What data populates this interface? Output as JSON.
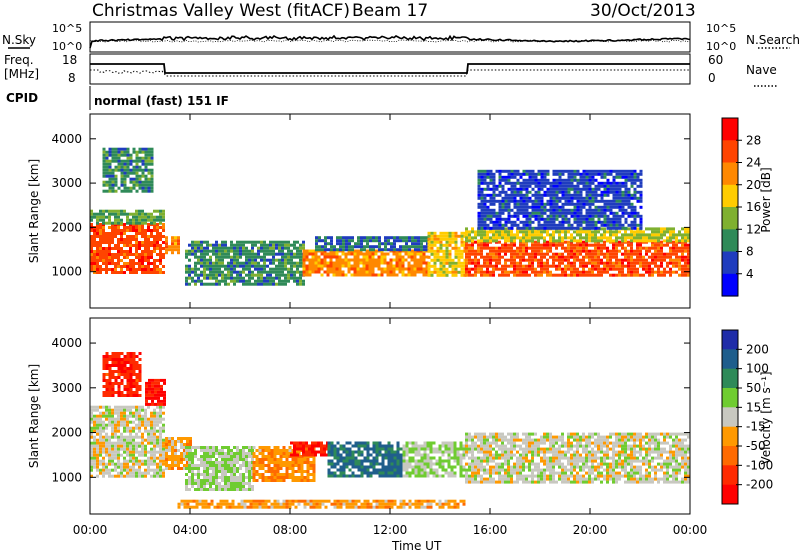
{
  "header": {
    "station": "Christmas Valley West (fitACF)",
    "beam": "Beam 17",
    "date": "30/Oct/2013"
  },
  "param_strip": {
    "nsky_label": "N.Sky",
    "nsky_ticks": [
      "10^5",
      "10^0"
    ],
    "nsearch_label": "N.Search",
    "nsearch_ticks": [
      "10^5",
      "10^0"
    ],
    "freq_label_1": "Freq.",
    "freq_label_2": "[MHz]",
    "freq_ticks": [
      "18",
      "8"
    ],
    "nave_label": "Nave",
    "nave_ticks": [
      "60",
      "0"
    ],
    "cpid_label": "CPID",
    "cpid_value": "normal (fast) 151 IF"
  },
  "power_panel": {
    "ylabel": "Slant Range [km]",
    "colorbar_label": "Power [dB]",
    "colorbar_ticks": [
      "28",
      "24",
      "20",
      "16",
      "12",
      "8",
      "4"
    ],
    "colorbar_colors": [
      "#ff0000",
      "#ff4400",
      "#ff8800",
      "#ffcc00",
      "#7fb030",
      "#2f8a58",
      "#1f3cbe",
      "#0000ff"
    ]
  },
  "velocity_panel": {
    "ylabel": "Slant Range [km]",
    "colorbar_label": "Velocity [m s⁻¹]",
    "colorbar_ticks": [
      "200",
      "100",
      "50",
      "15",
      "-15",
      "-50",
      "-100",
      "-200"
    ],
    "colorbar_colors": [
      "#1f2ca8",
      "#1f5e8c",
      "#2e8a58",
      "#6fcc30",
      "#c8c8c0",
      "#ff9900",
      "#ff6a00",
      "#ff2a00",
      "#ff0000"
    ]
  },
  "x_axis": {
    "label": "Time UT",
    "ticks": [
      "00:00",
      "04:00",
      "08:00",
      "12:00",
      "16:00",
      "20:00",
      "00:00"
    ]
  },
  "chart_data": [
    {
      "type": "heatmap",
      "title": "Christmas Valley West (fitACF) Beam 17 30/Oct/2013",
      "quantity": "Power",
      "xlabel": "Time UT",
      "ylabel": "Slant Range [km]",
      "colorbar_label": "Power [dB]",
      "xlim": [
        "00:00",
        "24:00"
      ],
      "ylim": [
        180,
        4560
      ],
      "y_ticks": [
        1000,
        2000,
        3000,
        4000
      ],
      "colorbar_range": [
        0,
        32
      ],
      "regions": [
        {
          "t_start": 0.0,
          "t_end": 3.0,
          "r_low": 1000,
          "r_high": 2100,
          "value": 26
        },
        {
          "t_start": 0.0,
          "t_end": 3.0,
          "r_low": 2100,
          "r_high": 2400,
          "value": 12
        },
        {
          "t_start": 0.5,
          "t_end": 2.5,
          "r_low": 2800,
          "r_high": 3800,
          "value": 10
        },
        {
          "t_start": 3.0,
          "t_end": 3.6,
          "r_low": 1400,
          "r_high": 1800,
          "value": 22
        },
        {
          "t_start": 3.8,
          "t_end": 8.5,
          "r_low": 750,
          "r_high": 1700,
          "value": 10
        },
        {
          "t_start": 8.5,
          "t_end": 13.5,
          "r_low": 900,
          "r_high": 1500,
          "value": 22
        },
        {
          "t_start": 9.0,
          "t_end": 13.5,
          "r_low": 1500,
          "r_high": 1800,
          "value": 8
        },
        {
          "t_start": 13.5,
          "t_end": 15.0,
          "r_low": 900,
          "r_high": 1900,
          "value": 18
        },
        {
          "t_start": 15.0,
          "t_end": 24.0,
          "r_low": 900,
          "r_high": 1700,
          "value": 26
        },
        {
          "t_start": 15.0,
          "t_end": 24.0,
          "r_low": 1700,
          "r_high": 2000,
          "value": 16
        },
        {
          "t_start": 15.5,
          "t_end": 22.0,
          "r_low": 2000,
          "r_high": 3300,
          "value": 6
        }
      ]
    },
    {
      "type": "heatmap",
      "title": "Christmas Valley West (fitACF) Beam 17 30/Oct/2013",
      "quantity": "Velocity",
      "xlabel": "Time UT",
      "ylabel": "Slant Range [km]",
      "colorbar_label": "Velocity [m s⁻¹]",
      "xlim": [
        "00:00",
        "24:00"
      ],
      "ylim": [
        180,
        4560
      ],
      "y_ticks": [
        1000,
        2000,
        3000,
        4000
      ],
      "colorbar_range": [
        -250,
        250
      ],
      "regions": [
        {
          "t_start": 0.0,
          "t_end": 3.0,
          "r_low": 1000,
          "r_high": 2600,
          "value": 0
        },
        {
          "t_start": 0.5,
          "t_end": 2.0,
          "r_low": 2800,
          "r_high": 3800,
          "value": -180
        },
        {
          "t_start": 2.2,
          "t_end": 3.0,
          "r_low": 2600,
          "r_high": 3200,
          "value": -200
        },
        {
          "t_start": 3.0,
          "t_end": 4.0,
          "r_low": 1200,
          "r_high": 1900,
          "value": -50
        },
        {
          "t_start": 3.8,
          "t_end": 6.5,
          "r_low": 750,
          "r_high": 1700,
          "value": 30
        },
        {
          "t_start": 6.5,
          "t_end": 9.0,
          "r_low": 900,
          "r_high": 1700,
          "value": -70
        },
        {
          "t_start": 8.0,
          "t_end": 9.5,
          "r_low": 1500,
          "r_high": 1800,
          "value": -200
        },
        {
          "t_start": 9.5,
          "t_end": 12.5,
          "r_low": 1000,
          "r_high": 1800,
          "value": 150
        },
        {
          "t_start": 12.5,
          "t_end": 15.0,
          "r_low": 1000,
          "r_high": 1800,
          "value": 30
        },
        {
          "t_start": 15.0,
          "t_end": 24.0,
          "r_low": 900,
          "r_high": 2000,
          "value": 0
        },
        {
          "t_start": 3.5,
          "t_end": 15.0,
          "r_low": 300,
          "r_high": 500,
          "value": -60
        }
      ]
    }
  ]
}
